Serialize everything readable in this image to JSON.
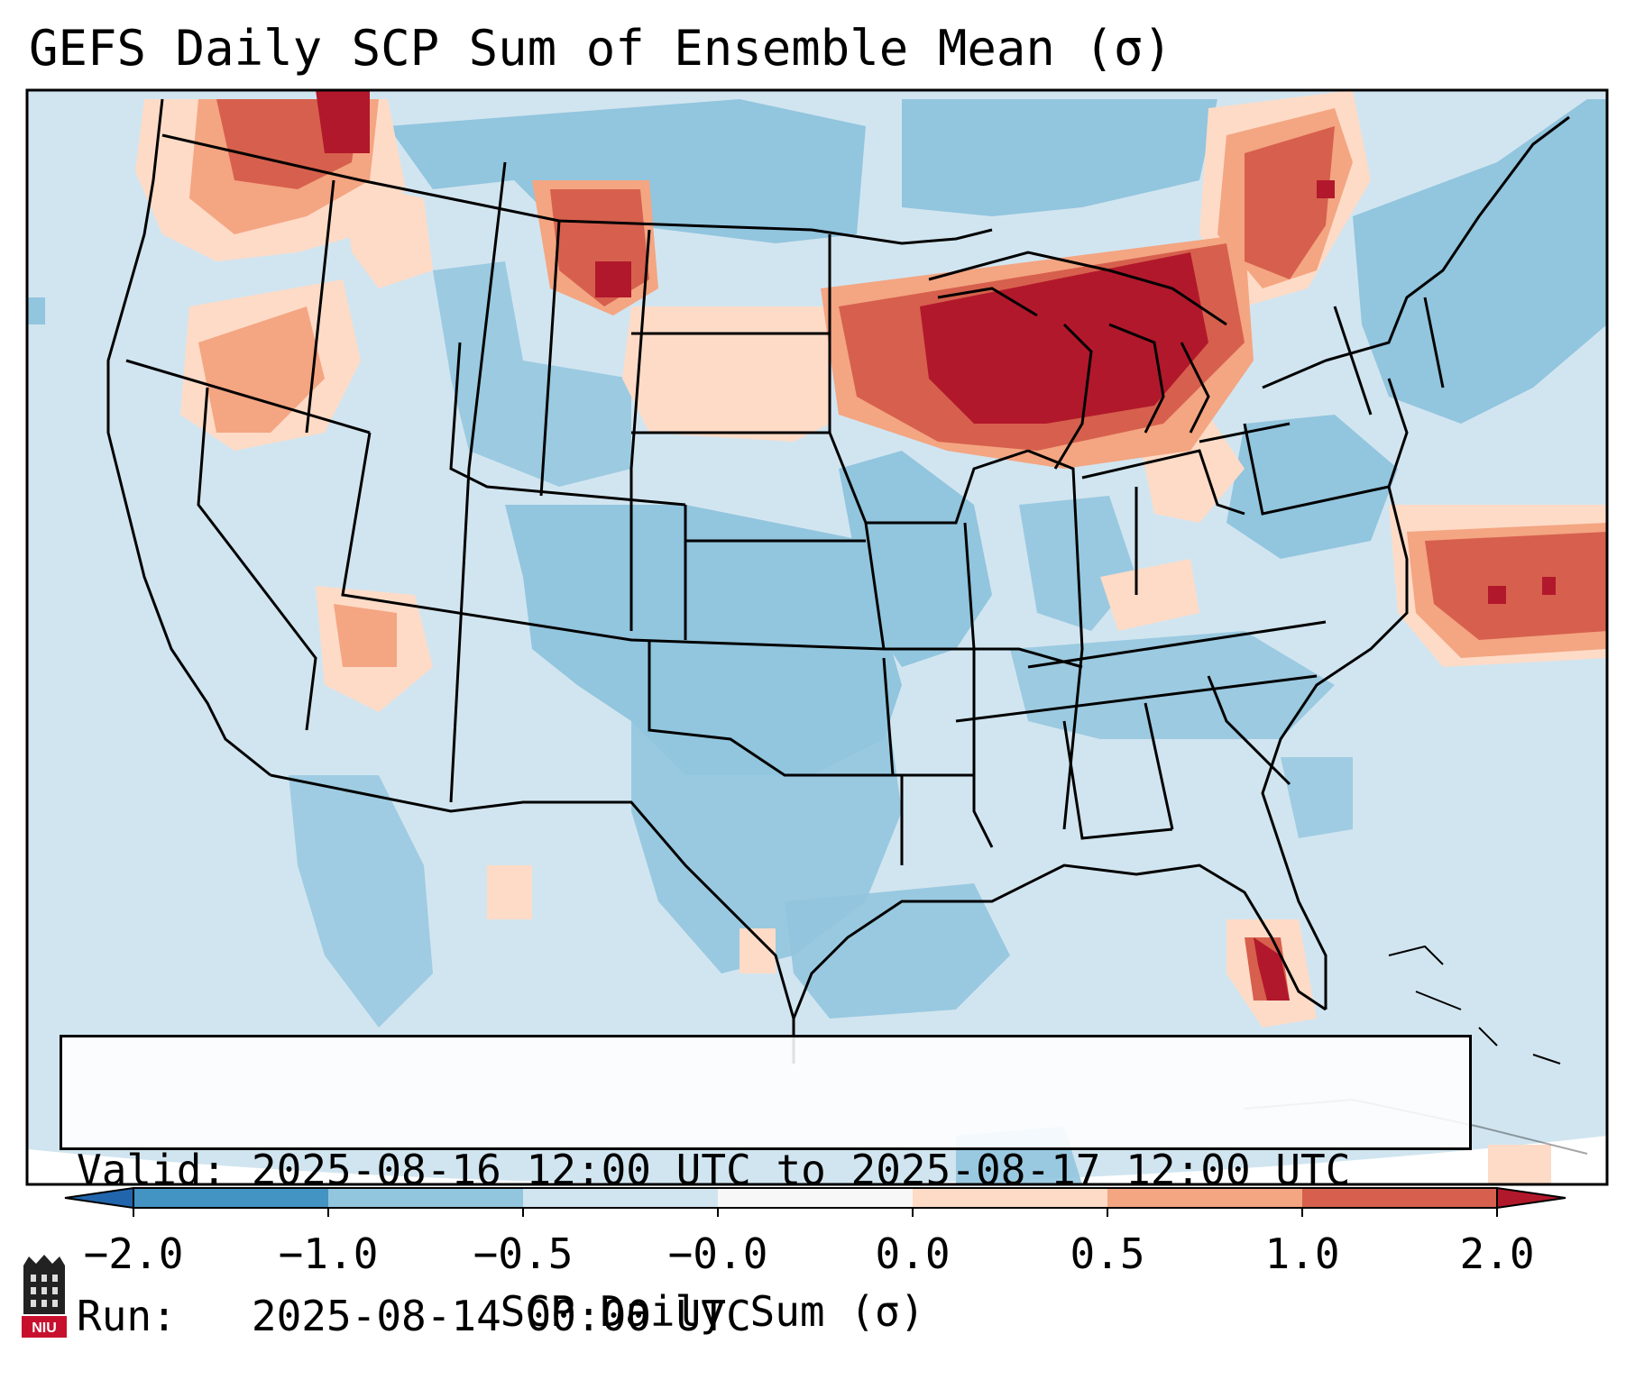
{
  "title": "GEFS Daily SCP Sum of Ensemble Mean (σ)",
  "info": {
    "valid_label": "Valid:",
    "valid_value": "2025-08-16 12:00 UTC to 2025-08-17 12:00 UTC",
    "run_label": "Run:",
    "run_value": "2025-08-14 00:00 UTC"
  },
  "colorbar": {
    "label": "SCP Daily Sum (σ)",
    "ticks": [
      "−2.0",
      "−1.0",
      "−0.5",
      "−0.0",
      "0.0",
      "0.5",
      "1.0",
      "2.0"
    ],
    "colors": [
      "#4393c3",
      "#92c5de",
      "#d1e5f0",
      "#f7f7f7",
      "#fddbc7",
      "#f4a582",
      "#d6604d",
      "#b2182b"
    ],
    "extend_low": "#2166ac",
    "extend_high": "#b2182b"
  },
  "map": {
    "ocean_color": "#d1e5f0",
    "land_color": "#d1e5f0",
    "regions": [
      {
        "name": "pacific-northwest-high",
        "level": "0.5 to 1.0"
      },
      {
        "name": "montana-high",
        "level": "1.0 to 2.0"
      },
      {
        "name": "great-lakes-high",
        "level": "above 2.0"
      },
      {
        "name": "atlantic-offshore-high",
        "level": "1.0 to 2.0"
      },
      {
        "name": "south-florida-high",
        "level": "above 2.0"
      },
      {
        "name": "ontario-quebec-high",
        "level": "1.0 to 2.0"
      },
      {
        "name": "central-plains-low",
        "level": "−1.0 to −0.5"
      }
    ]
  },
  "logo": {
    "text": "NIU"
  }
}
